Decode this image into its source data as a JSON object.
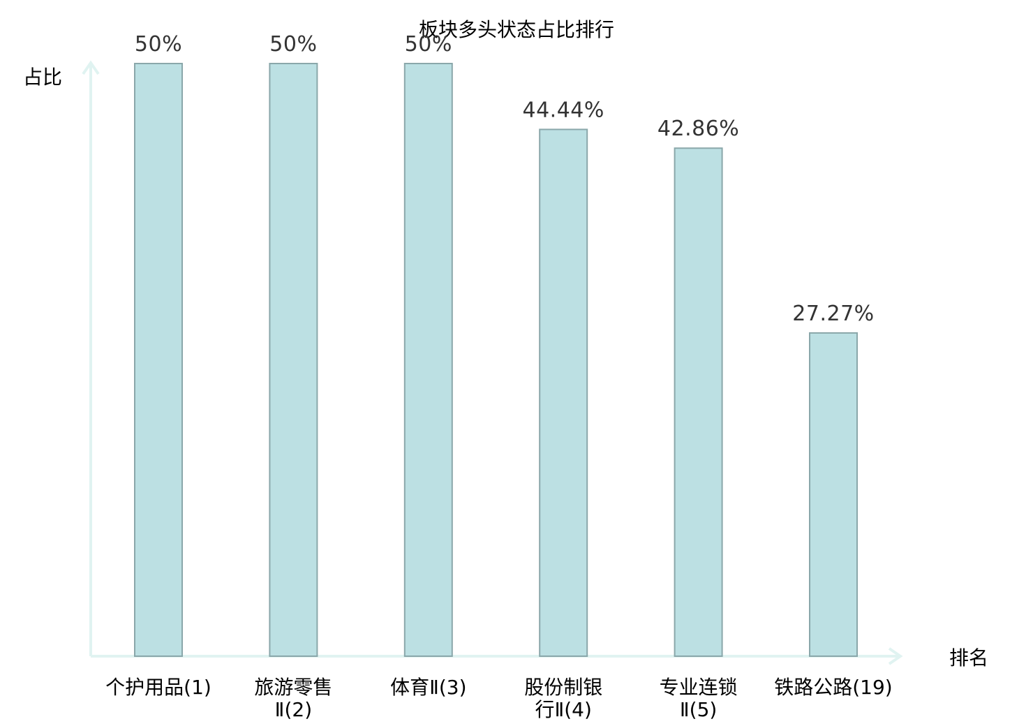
{
  "chart_data": {
    "type": "bar",
    "title": "板块多头状态占比排行",
    "ylabel": "占比",
    "xlabel": "排名",
    "ylim": [
      0,
      50
    ],
    "grid": false,
    "categories": [
      [
        "个护用品(1)"
      ],
      [
        "旅游零售",
        "Ⅱ(2)"
      ],
      [
        "体育Ⅱ(3)"
      ],
      [
        "股份制银",
        "行Ⅱ(4)"
      ],
      [
        "专业连锁",
        "Ⅱ(5)"
      ],
      [
        "铁路公路(19)"
      ]
    ],
    "values": [
      50,
      50,
      50,
      44.44,
      42.86,
      27.27
    ],
    "value_labels": [
      "50%",
      "50%",
      "50%",
      "44.44%",
      "42.86%",
      "27.27%"
    ],
    "highlight_index": 5,
    "colors": {
      "bar_fill": "#bce0e3",
      "bar_stroke": "#8aa7aa",
      "axis": "#e0f3f1",
      "highlight_text": "#e8141a",
      "text": "#000000",
      "value_text": "#333333"
    }
  }
}
